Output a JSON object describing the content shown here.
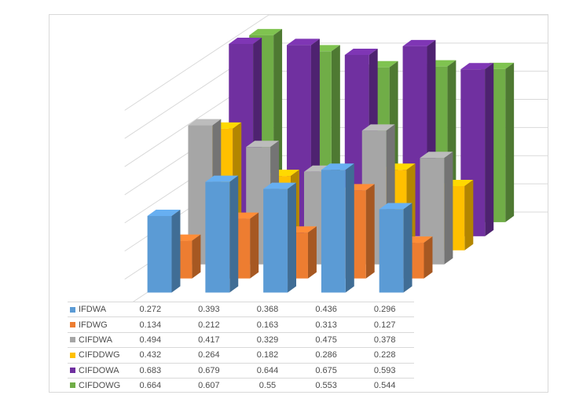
{
  "chart_data": {
    "type": "bar",
    "subtype": "3d-column-depth-series",
    "title": "",
    "categories": [
      "",
      "",
      "",
      "",
      ""
    ],
    "series": [
      {
        "name": "IFDWA",
        "color": "#5B9BD5",
        "values": [
          0.272,
          0.393,
          0.368,
          0.436,
          0.296
        ]
      },
      {
        "name": "IFDWG",
        "color": "#ED7D31",
        "values": [
          0.134,
          0.212,
          0.163,
          0.313,
          0.127
        ]
      },
      {
        "name": "CIFDWA",
        "color": "#A6A6A6",
        "values": [
          0.494,
          0.417,
          0.329,
          0.475,
          0.378
        ]
      },
      {
        "name": "CIFDDWG",
        "color": "#FFC000",
        "values": [
          0.432,
          0.264,
          0.182,
          0.286,
          0.228
        ]
      },
      {
        "name": "CIFDOWA",
        "color": "#7030A0",
        "values": [
          0.683,
          0.679,
          0.644,
          0.675,
          0.593
        ]
      },
      {
        "name": "CIFDOWG",
        "color": "#70AD47",
        "values": [
          0.664,
          0.607,
          0.55,
          0.553,
          0.544
        ]
      }
    ],
    "ylim": [
      0,
      0.8
    ],
    "grid_step": 0.1,
    "grid": true,
    "axis_labels_visible": false,
    "legend_position": "bottom-table-left-column"
  },
  "colors": {
    "background": "#FFFFFF",
    "chart_border": "#D9D9D9",
    "grid": "#D9D9D9",
    "table_divider": "#D9D9D9",
    "table_text": "#4D4D4D"
  }
}
